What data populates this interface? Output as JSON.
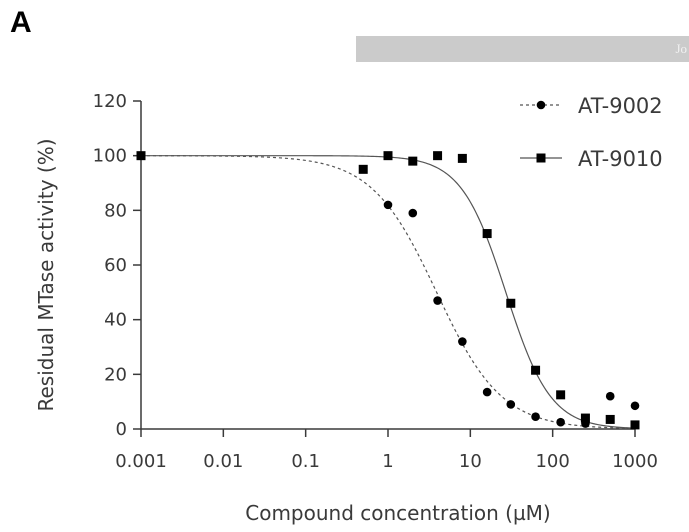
{
  "panel_label": "A",
  "banner_text": "Jo",
  "chart_data": {
    "type": "scatter",
    "xlabel": "Compound concentration (µM)",
    "ylabel": "Residual MTase activity (%)",
    "xscale": "log",
    "xlim": [
      0.001,
      1000
    ],
    "ylim": [
      0,
      120
    ],
    "xticks": [
      0.001,
      0.01,
      0.1,
      1,
      10,
      100,
      1000
    ],
    "xtick_labels": [
      "0.001",
      "0.01",
      "0.1",
      "1",
      "10",
      "100",
      "1000"
    ],
    "yticks": [
      0,
      20,
      40,
      60,
      80,
      100,
      120
    ],
    "ytick_labels": [
      "0",
      "20",
      "40",
      "60",
      "80",
      "100",
      "120"
    ],
    "grid": false,
    "legend_position": "top-right",
    "series": [
      {
        "name": "AT-9002",
        "marker": "circle",
        "line_style": "dashed",
        "points": [
          {
            "x": 0.001,
            "y": 100
          },
          {
            "x": 1,
            "y": 82
          },
          {
            "x": 2,
            "y": 79
          },
          {
            "x": 4,
            "y": 47
          },
          {
            "x": 8,
            "y": 32
          },
          {
            "x": 16,
            "y": 13.5
          },
          {
            "x": 31,
            "y": 9
          },
          {
            "x": 62,
            "y": 4.5
          },
          {
            "x": 125,
            "y": 2.5
          },
          {
            "x": 250,
            "y": 2
          },
          {
            "x": 500,
            "y": 12
          },
          {
            "x": 1000,
            "y": 8.5
          }
        ],
        "fit": {
          "top": 100,
          "bottom": 0,
          "ic50": 3.9,
          "hill": 1.1
        }
      },
      {
        "name": "AT-9010",
        "marker": "square",
        "line_style": "solid",
        "points": [
          {
            "x": 0.001,
            "y": 100
          },
          {
            "x": 0.5,
            "y": 95
          },
          {
            "x": 1,
            "y": 100
          },
          {
            "x": 2,
            "y": 98
          },
          {
            "x": 4,
            "y": 100
          },
          {
            "x": 8,
            "y": 99
          },
          {
            "x": 16,
            "y": 71.5
          },
          {
            "x": 31,
            "y": 46
          },
          {
            "x": 62,
            "y": 21.5
          },
          {
            "x": 125,
            "y": 12.5
          },
          {
            "x": 250,
            "y": 4
          },
          {
            "x": 500,
            "y": 3.5
          },
          {
            "x": 1000,
            "y": 1.5
          }
        ],
        "fit": {
          "top": 100,
          "bottom": 0,
          "ic50": 27,
          "hill": 1.6
        }
      }
    ]
  }
}
